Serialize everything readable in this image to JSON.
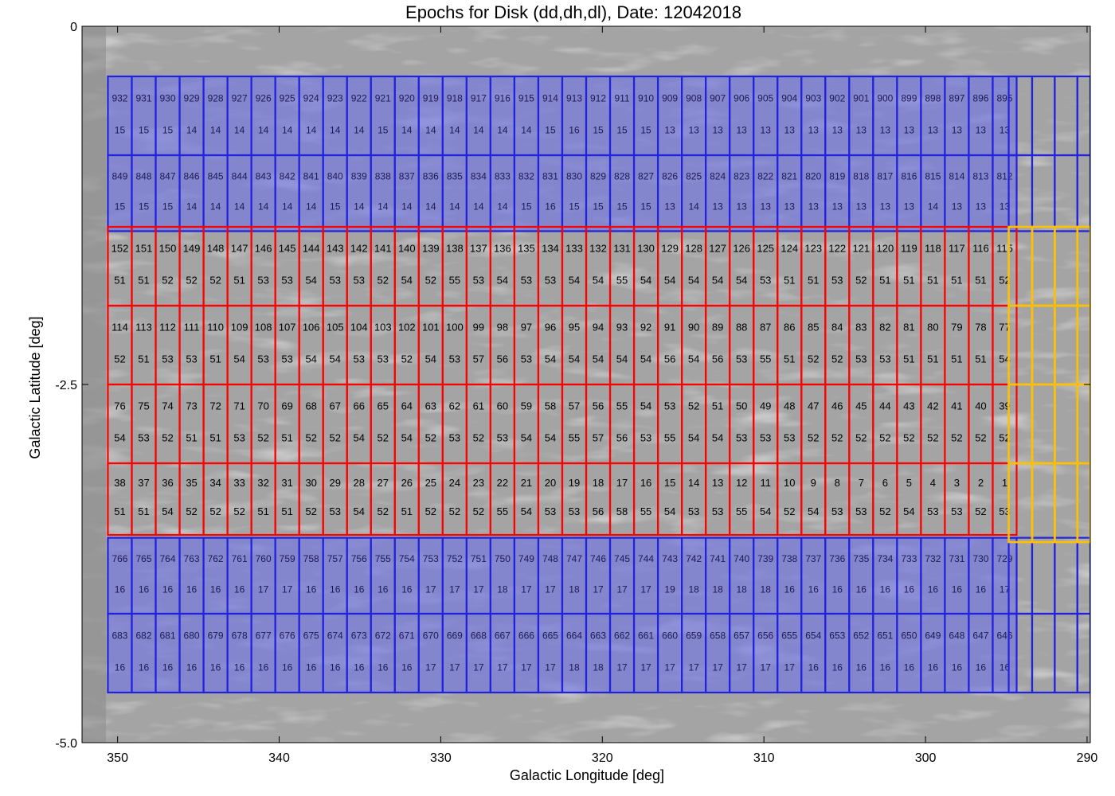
{
  "chart_data": {
    "type": "heatmap",
    "title": "Epochs for Disk (dd,dh,dl), Date: 12042018",
    "xlabel": "Galactic Longitude [deg]",
    "ylabel": "Galactic Latitude [deg]",
    "xlim": [
      352.2,
      289.8
    ],
    "ylim": [
      -5.0,
      0
    ],
    "x_ticks": [
      "350",
      "340",
      "330",
      "320",
      "310",
      "300",
      "290"
    ],
    "y_ticks": [
      "0",
      "-2.5",
      "-5.0"
    ],
    "colors": {
      "red_fields": "#ff0000",
      "blue_fields": "#2222dd",
      "yellow_fields": "#ffc000",
      "blue_fill": "#6f74e6"
    },
    "red_fields": {
      "l_start": 350.6,
      "l_width": 1.48,
      "b_bands": [
        [
          -1.4,
          -1.95
        ],
        [
          -1.95,
          -2.5
        ],
        [
          -2.5,
          -3.05
        ],
        [
          -3.05,
          -3.55
        ]
      ],
      "rows": [
        {
          "ids": [
            "152",
            "151",
            "150",
            "149",
            "148",
            "147",
            "146",
            "145",
            "144",
            "143",
            "142",
            "141",
            "140",
            "139",
            "138",
            "137",
            "136",
            "135",
            "134",
            "133",
            "132",
            "131",
            "130",
            "129",
            "128",
            "127",
            "126",
            "125",
            "124",
            "123",
            "122",
            "121",
            "120",
            "119",
            "118",
            "117",
            "116",
            "115"
          ],
          "epochs": [
            "51",
            "51",
            "52",
            "52",
            "52",
            "51",
            "53",
            "53",
            "54",
            "53",
            "53",
            "52",
            "54",
            "52",
            "55",
            "53",
            "54",
            "53",
            "53",
            "54",
            "54",
            "55",
            "54",
            "54",
            "54",
            "54",
            "54",
            "53",
            "51",
            "51",
            "53",
            "52",
            "51",
            "51",
            "51",
            "51",
            "51",
            "52"
          ]
        },
        {
          "ids": [
            "114",
            "113",
            "112",
            "111",
            "110",
            "109",
            "108",
            "107",
            "106",
            "105",
            "104",
            "103",
            "102",
            "101",
            "100",
            "99",
            "98",
            "97",
            "96",
            "95",
            "94",
            "93",
            "92",
            "91",
            "90",
            "89",
            "88",
            "87",
            "86",
            "85",
            "84",
            "83",
            "82",
            "81",
            "80",
            "79",
            "78",
            "77"
          ],
          "epochs": [
            "52",
            "51",
            "53",
            "53",
            "51",
            "54",
            "53",
            "53",
            "54",
            "54",
            "53",
            "53",
            "52",
            "54",
            "53",
            "57",
            "56",
            "53",
            "54",
            "54",
            "54",
            "54",
            "54",
            "56",
            "54",
            "56",
            "53",
            "55",
            "51",
            "52",
            "52",
            "53",
            "53",
            "51",
            "51",
            "51",
            "51",
            "54"
          ]
        },
        {
          "ids": [
            "76",
            "75",
            "74",
            "73",
            "72",
            "71",
            "70",
            "69",
            "68",
            "67",
            "66",
            "65",
            "64",
            "63",
            "62",
            "61",
            "60",
            "59",
            "58",
            "57",
            "56",
            "55",
            "54",
            "53",
            "52",
            "51",
            "50",
            "49",
            "48",
            "47",
            "46",
            "45",
            "44",
            "43",
            "42",
            "41",
            "40",
            "39"
          ],
          "epochs": [
            "54",
            "53",
            "52",
            "51",
            "51",
            "53",
            "52",
            "51",
            "52",
            "52",
            "54",
            "52",
            "54",
            "52",
            "53",
            "52",
            "53",
            "54",
            "54",
            "55",
            "57",
            "56",
            "53",
            "55",
            "54",
            "54",
            "53",
            "53",
            "53",
            "52",
            "52",
            "52",
            "52",
            "52",
            "52",
            "52",
            "52",
            "52"
          ]
        },
        {
          "ids": [
            "38",
            "37",
            "36",
            "35",
            "34",
            "33",
            "32",
            "31",
            "30",
            "29",
            "28",
            "27",
            "26",
            "25",
            "24",
            "23",
            "22",
            "21",
            "20",
            "19",
            "18",
            "17",
            "16",
            "15",
            "14",
            "13",
            "12",
            "11",
            "10",
            "9",
            "8",
            "7",
            "6",
            "5",
            "4",
            "3",
            "2",
            "1"
          ],
          "epochs": [
            "51",
            "51",
            "54",
            "52",
            "52",
            "52",
            "51",
            "51",
            "52",
            "53",
            "54",
            "52",
            "51",
            "52",
            "52",
            "52",
            "55",
            "54",
            "53",
            "53",
            "56",
            "58",
            "55",
            "54",
            "53",
            "53",
            "55",
            "54",
            "52",
            "54",
            "53",
            "53",
            "52",
            "54",
            "53",
            "53",
            "52",
            "53"
          ]
        }
      ]
    },
    "blue_fields": {
      "l_start": 350.6,
      "l_width": 1.48,
      "b_bands": [
        [
          -0.35,
          -0.9
        ],
        [
          -0.9,
          -1.43
        ],
        [
          -3.57,
          -4.1
        ],
        [
          -4.1,
          -4.65
        ]
      ],
      "rows": [
        {
          "ids": [
            "932",
            "931",
            "930",
            "929",
            "928",
            "927",
            "926",
            "925",
            "924",
            "923",
            "922",
            "921",
            "920",
            "919",
            "918",
            "917",
            "916",
            "915",
            "914",
            "913",
            "912",
            "911",
            "910",
            "909",
            "908",
            "907",
            "906",
            "905",
            "904",
            "903",
            "902",
            "901",
            "900",
            "899",
            "898",
            "897",
            "896",
            "895"
          ],
          "epochs": [
            "15",
            "15",
            "15",
            "14",
            "14",
            "14",
            "14",
            "14",
            "14",
            "14",
            "14",
            "15",
            "14",
            "14",
            "14",
            "14",
            "14",
            "14",
            "15",
            "16",
            "15",
            "15",
            "15",
            "13",
            "13",
            "13",
            "13",
            "13",
            "13",
            "13",
            "13",
            "13",
            "13",
            "13",
            "13",
            "13",
            "13",
            "13"
          ]
        },
        {
          "ids": [
            "849",
            "848",
            "847",
            "846",
            "845",
            "844",
            "843",
            "842",
            "841",
            "840",
            "839",
            "838",
            "837",
            "836",
            "835",
            "834",
            "833",
            "832",
            "831",
            "830",
            "829",
            "828",
            "827",
            "826",
            "825",
            "824",
            "823",
            "822",
            "821",
            "820",
            "819",
            "818",
            "817",
            "816",
            "815",
            "814",
            "813",
            "812"
          ],
          "epochs": [
            "15",
            "15",
            "15",
            "14",
            "14",
            "14",
            "14",
            "14",
            "14",
            "15",
            "14",
            "14",
            "14",
            "14",
            "14",
            "14",
            "14",
            "15",
            "16",
            "15",
            "15",
            "15",
            "15",
            "13",
            "14",
            "13",
            "13",
            "13",
            "13",
            "13",
            "13",
            "13",
            "13",
            "13",
            "14",
            "13",
            "13",
            "13"
          ]
        },
        {
          "ids": [
            "766",
            "765",
            "764",
            "763",
            "762",
            "761",
            "760",
            "759",
            "758",
            "757",
            "756",
            "755",
            "754",
            "753",
            "752",
            "751",
            "750",
            "749",
            "748",
            "747",
            "746",
            "745",
            "744",
            "743",
            "742",
            "741",
            "740",
            "739",
            "738",
            "737",
            "736",
            "735",
            "734",
            "733",
            "732",
            "731",
            "730",
            "729"
          ],
          "epochs": [
            "16",
            "16",
            "16",
            "16",
            "16",
            "16",
            "17",
            "17",
            "16",
            "16",
            "16",
            "16",
            "16",
            "17",
            "17",
            "17",
            "18",
            "17",
            "17",
            "18",
            "17",
            "17",
            "17",
            "19",
            "18",
            "18",
            "18",
            "18",
            "16",
            "16",
            "16",
            "16",
            "16",
            "16",
            "16",
            "16",
            "16",
            "17"
          ]
        },
        {
          "ids": [
            "683",
            "682",
            "681",
            "680",
            "679",
            "678",
            "677",
            "676",
            "675",
            "674",
            "673",
            "672",
            "671",
            "670",
            "669",
            "668",
            "667",
            "666",
            "665",
            "664",
            "663",
            "662",
            "661",
            "660",
            "659",
            "658",
            "657",
            "656",
            "655",
            "654",
            "653",
            "652",
            "651",
            "650",
            "649",
            "648",
            "647",
            "646"
          ],
          "epochs": [
            "16",
            "16",
            "16",
            "16",
            "16",
            "16",
            "16",
            "16",
            "16",
            "16",
            "16",
            "16",
            "16",
            "17",
            "17",
            "17",
            "17",
            "17",
            "17",
            "18",
            "18",
            "17",
            "17",
            "17",
            "17",
            "17",
            "17",
            "17",
            "17",
            "16",
            "16",
            "16",
            "16",
            "16",
            "16",
            "16",
            "16",
            "16"
          ]
        }
      ]
    },
    "empty_blue_columns": [
      294.85,
      293.4,
      292.0,
      290.6,
      289.8
    ],
    "empty_blue_bands": [
      -0.35,
      -0.9,
      -1.43,
      -3.57,
      -4.1,
      -4.65
    ],
    "yellow_columns": [
      294.85,
      293.4,
      292.0,
      290.6,
      289.8
    ],
    "yellow_bands": [
      -1.4,
      -1.95,
      -2.5,
      -3.05,
      -3.6
    ]
  }
}
